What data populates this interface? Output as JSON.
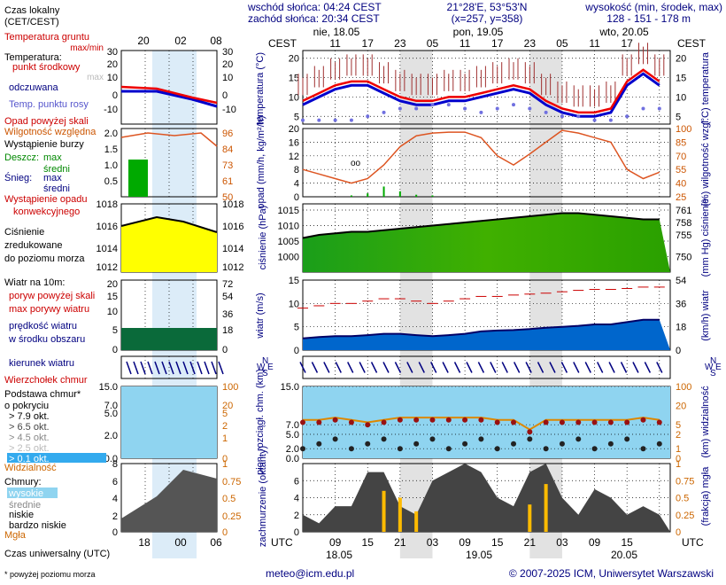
{
  "header": {
    "sunrise": "wschód słońca: 04:24 CEST",
    "sunset": "zachód słońca: 20:34 CEST",
    "coords": "21°28'E, 53°53'N",
    "grid": "(x=257, y=358)",
    "elev_label": "wysokość (min, środek, max)",
    "elev_values": "128 - 151 - 178 m"
  },
  "legend": {
    "local_time_title": "Czas lokalny",
    "local_time_sub": "(CET/CEST)",
    "local_hours": [
      "20",
      "02",
      "08"
    ],
    "utc_hours": [
      "18",
      "00",
      "06"
    ],
    "utc_title": "Czas uniwersalny (UTC)",
    "temp_ground": "Temperatura gruntu",
    "temp_ground_sub": "max/min",
    "temp_title": "Temperatura:",
    "temp_mid": "punkt środkowy",
    "temp_max": "max",
    "temp_min": "min",
    "temp_feel": "odczuwana",
    "temp_dew": "Temp. punktu rosy",
    "precip_above": "Opad powyżej skali",
    "humidity": "Wilgotność względna",
    "storm": "Wystąpienie burzy",
    "rain_label": "Deszcz:",
    "rain_max": "max",
    "rain_mean": "średni",
    "snow_label": "Śnieg:",
    "snow_max": "max",
    "snow_mean": "średni",
    "precip_occ1": "Wystąpienie opadu",
    "precip_occ2": "konwekcyjnego",
    "pressure1": "Ciśnienie",
    "pressure2": "zredukowane",
    "pressure3": "do poziomu morza",
    "wind_title": "Wiatr na 10m:",
    "gust_above": "poryw powyżej skali",
    "gust_max": "max porywy wiatru",
    "wind_speed1": "prędkość wiatru",
    "wind_speed2": "w środku obszaru",
    "wind_dir": "kierunek wiatru",
    "cloud_top": "Wierzchołek chmur",
    "cloud_base1": "Podstawa chmur*",
    "cloud_base2": "o pokryciu",
    "okt": [
      "> 7.9 okt.",
      "> 6.5 okt.",
      "> 4.5 okt.",
      "> 2.5 okt.",
      "> 0.1 okt."
    ],
    "visibility": "Widzialność",
    "clouds_title": "Chmury:",
    "cloud_high": "wysokie",
    "cloud_mid": "średnie",
    "cloud_low": "niskie",
    "cloud_vlow": "bardzo niskie",
    "fog": "Mgła",
    "footnote": "* powyżej poziomu morza"
  },
  "axes": {
    "cest": "CEST",
    "utc": "UTC",
    "days_top": [
      "nie, 18.05",
      "pon, 19.05",
      "wto, 20.05"
    ],
    "days_bottom": [
      "18.05",
      "19.05",
      "20.05"
    ],
    "top_hours": [
      "11",
      "17",
      "23",
      "05",
      "11",
      "17",
      "23",
      "05",
      "11",
      "17"
    ],
    "bottom_hours": [
      "09",
      "15",
      "21",
      "03",
      "09",
      "15",
      "21",
      "03",
      "09",
      "15"
    ],
    "temp_left": "temperatura (°C)",
    "temp_right": "(°C) temperatura",
    "precip_left": "opad (mm/h, kg/m²/h)",
    "precip_right": "(%) wilgotność wzgl.",
    "press_left": "ciśnienie (hPa)",
    "press_right": "(mm Hg) ciśnienie",
    "wind_left": "wiatr (m/s)",
    "wind_right": "(km/h) wiatr",
    "cloud_left": "pion. rozciągł. chm. (km)",
    "cloud_right": "(km) widzialność",
    "cover_left": "zachmurzenie (oktanty)",
    "cover_right": "(frakcja) mgła",
    "compass": [
      "N",
      "W",
      "E",
      "S"
    ]
  },
  "footer": {
    "email": "meteo@icm.edu.pl",
    "copyright": "© 2007-2025 ICM, Uniwersytet Warszawski"
  },
  "colors": {
    "grid_red": "#cc0000",
    "night": "#d8d8d8",
    "sky": "#8fd4f0",
    "accent_blue": "#000080",
    "orange": "#cc6600"
  },
  "chart_data": {
    "type": "meteogram",
    "x_hours_utc": [
      3,
      6,
      9,
      12,
      15,
      18,
      21,
      24,
      27,
      30,
      33,
      36,
      39,
      42,
      45,
      48,
      51,
      54,
      57,
      60,
      63,
      66,
      69
    ],
    "temperature": {
      "ylim": [
        3,
        22
      ],
      "values": [
        9,
        11,
        13,
        14,
        14,
        12,
        10,
        9,
        9,
        10,
        10,
        11,
        12,
        13,
        12,
        9,
        7,
        6,
        6,
        7,
        14,
        17,
        14
      ]
    },
    "feels_like": [
      8,
      10,
      12,
      13,
      13,
      11,
      9,
      8,
      8,
      9,
      9,
      10,
      11,
      12,
      11,
      8,
      6,
      5,
      5,
      6,
      13,
      16,
      13
    ],
    "dew_point": [
      4,
      4,
      4,
      4,
      5,
      6,
      7,
      7,
      8,
      8,
      7,
      6,
      7,
      8,
      7,
      6,
      5,
      5,
      4,
      4,
      5,
      7,
      7
    ],
    "humidity": {
      "ylim": [
        25,
        100
      ],
      "values": [
        55,
        50,
        45,
        40,
        45,
        60,
        80,
        92,
        95,
        96,
        96,
        90,
        70,
        60,
        72,
        85,
        98,
        95,
        90,
        85,
        55,
        45,
        52
      ]
    },
    "precip": {
      "ylim": [
        0,
        20
      ],
      "values": [
        0,
        0,
        0,
        0.2,
        0.5,
        1.5,
        0.8,
        0.3,
        0.2,
        0,
        0,
        0,
        0,
        0,
        0,
        0,
        0,
        0,
        0,
        0,
        0,
        0,
        0
      ]
    },
    "pressure": {
      "ylim": [
        995,
        1017
      ],
      "values": [
        1006,
        1007,
        1007.5,
        1008,
        1008,
        1008.5,
        1009,
        1009.5,
        1010,
        1010.5,
        1011,
        1011.5,
        1012,
        1012.5,
        1013,
        1013.5,
        1014,
        1014,
        1013.5,
        1013,
        1012.5,
        1012,
        1012
      ]
    },
    "wind_speed": {
      "ylim": [
        0,
        15
      ],
      "values": [
        2.5,
        2.8,
        3,
        3,
        3.2,
        3.5,
        3.5,
        3.2,
        3,
        3.2,
        3.5,
        4,
        4.2,
        4.3,
        4.5,
        4.8,
        5,
        5.2,
        5.5,
        5.5,
        6,
        6.5,
        6.5
      ]
    },
    "wind_gust": [
      9,
      9.5,
      10,
      10,
      10.5,
      11,
      11,
      10.5,
      10,
      10.5,
      11,
      11.5,
      11.5,
      11.8,
      12,
      12.2,
      12.5,
      12.8,
      13,
      13,
      13.2,
      13.5,
      13.5
    ],
    "cloud_top_km": [
      8,
      8,
      8.5,
      8,
      7.5,
      8,
      8.5,
      8.5,
      8.5,
      8.5,
      8.5,
      8.5,
      8,
      8,
      6,
      8,
      8,
      8,
      8,
      8,
      8,
      8.5,
      8
    ],
    "visibility_km": [
      6,
      8,
      11,
      9,
      8,
      7,
      6,
      7,
      7,
      9,
      10,
      10,
      10,
      10,
      10,
      10,
      10,
      10,
      10,
      11,
      11,
      10,
      10
    ],
    "cloud_cover": {
      "ylim": [
        0,
        8
      ],
      "values": [
        2,
        1,
        3,
        3,
        7,
        7,
        3,
        2,
        6,
        7,
        8,
        7,
        4,
        3,
        7,
        8,
        4,
        2,
        5,
        4,
        2,
        3,
        2
      ]
    },
    "fog": {
      "ylim": [
        0,
        1
      ],
      "values": [
        0,
        0,
        0,
        0,
        0,
        0.6,
        0.5,
        0.3,
        0,
        0,
        0,
        0,
        0,
        0,
        0.4,
        0.7,
        0,
        0,
        0,
        0,
        0,
        0,
        0
      ]
    }
  }
}
